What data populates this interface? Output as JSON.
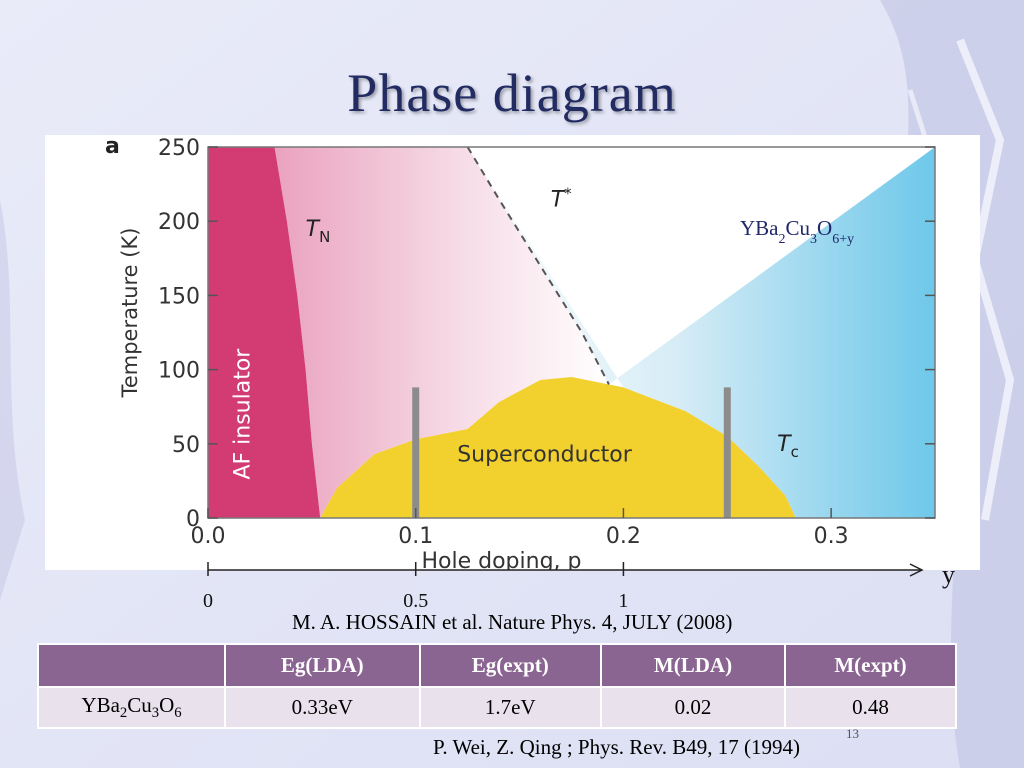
{
  "slide": {
    "title": "Phase diagram",
    "figure_reference": "M. A. HOSSAIN et al. Nature Phys. 4, JULY (2008)",
    "table_reference": "P. Wei, Z. Qing ; Phys. Rev. B49,  17 (1994)",
    "page_number": "13"
  },
  "chart_data": {
    "type": "area",
    "panel_label": "a",
    "xlabel": "Hole doping, p",
    "ylabel": "Temperature (K)",
    "xlim": [
      0.0,
      0.35
    ],
    "ylim": [
      0,
      250
    ],
    "x_ticks": [
      "0.0",
      "0.1",
      "0.2",
      "0.3"
    ],
    "y_ticks": [
      "0",
      "50",
      "100",
      "150",
      "200",
      "250"
    ],
    "grid": false,
    "compound_label": "YBa2Cu3O6+y",
    "regions": [
      {
        "name": "AF insulator",
        "color": "#d23c72",
        "boundary": [
          [
            0.0,
            250
          ],
          [
            0.032,
            250
          ],
          [
            0.038,
            200
          ],
          [
            0.043,
            150
          ],
          [
            0.047,
            100
          ],
          [
            0.05,
            50
          ],
          [
            0.054,
            0
          ],
          [
            0.0,
            0
          ]
        ]
      },
      {
        "name": "Superconductor",
        "color": "#f2d12e",
        "boundary": [
          [
            0.054,
            0
          ],
          [
            0.062,
            20
          ],
          [
            0.08,
            43
          ],
          [
            0.1,
            53
          ],
          [
            0.125,
            60
          ],
          [
            0.14,
            78
          ],
          [
            0.16,
            93
          ],
          [
            0.175,
            95
          ],
          [
            0.2,
            88
          ],
          [
            0.23,
            72
          ],
          [
            0.25,
            55
          ],
          [
            0.265,
            35
          ],
          [
            0.278,
            15
          ],
          [
            0.283,
            0
          ]
        ]
      }
    ],
    "lines": [
      {
        "name": "T*",
        "style": "dashed",
        "points": [
          [
            0.125,
            250
          ],
          [
            0.14,
            215
          ],
          [
            0.16,
            170
          ],
          [
            0.18,
            125
          ],
          [
            0.193,
            90
          ]
        ]
      }
    ],
    "markers": [
      {
        "x": 0.1,
        "ymin": 0,
        "ymax": 88
      },
      {
        "x": 0.25,
        "ymin": 0,
        "ymax": 88
      }
    ],
    "annotations": [
      {
        "text": "T",
        "sub": "N",
        "x": 0.047,
        "y": 190
      },
      {
        "text": "T",
        "sup": "*",
        "x": 0.165,
        "y": 210
      },
      {
        "text": "T",
        "sub": "c",
        "x": 0.274,
        "y": 45
      },
      {
        "text": "AF insulator",
        "x": 0.02,
        "y": 70,
        "rotate": -90
      },
      {
        "text": "Superconductor",
        "x": 0.162,
        "y": 38
      }
    ],
    "secondary_axis": {
      "label": "y",
      "ticks": [
        {
          "label": "0",
          "p": 0.0
        },
        {
          "label": "0.5",
          "p": 0.1
        },
        {
          "label": "1",
          "p": 0.2
        }
      ]
    }
  },
  "table": {
    "headers": [
      "",
      "Eg(LDA)",
      "Eg(expt)",
      "M(LDA)",
      "M(expt)"
    ],
    "rows": [
      {
        "compound": "YBa2Cu3O6",
        "values": [
          "0.33eV",
          "1.7eV",
          "0.02",
          "0.48"
        ]
      }
    ]
  }
}
